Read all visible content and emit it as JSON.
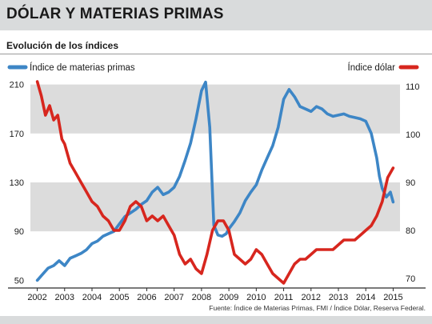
{
  "header": {
    "title": "DÓLAR Y MATERIAS PRIMAS",
    "subtitle": "Evolución de los índices"
  },
  "footer": {
    "source": "Fuente: Índice de Materias Primas, FMI / Índice Dólar, Reserva Federal."
  },
  "colors": {
    "commodity": "#3d86c6",
    "dollar": "#d7261e",
    "band": "#dcdcdc",
    "header_bg": "#d9dbdc"
  },
  "chart_data": {
    "type": "line",
    "x_ticks": [
      "2002",
      "2003",
      "2004",
      "2005",
      "2006",
      "2007",
      "2008",
      "2009",
      "2010",
      "2011",
      "2012",
      "2013",
      "2014",
      "2015"
    ],
    "xlim": [
      2001.75,
      2015.25
    ],
    "left_axis": {
      "ylim": [
        45,
        215
      ],
      "ticks": [
        50,
        90,
        130,
        170,
        210
      ]
    },
    "right_axis": {
      "ylim": [
        68.33,
        111.67
      ],
      "ticks": [
        70,
        80,
        90,
        100,
        110
      ]
    },
    "grid_bands": [
      [
        90,
        130
      ],
      [
        170,
        210
      ]
    ],
    "legend": {
      "placement": "top"
    },
    "series": [
      {
        "name": "Índice de materias primas",
        "axis": "left",
        "color": "#3d86c6",
        "x": [
          2002.0,
          2002.2,
          2002.4,
          2002.6,
          2002.8,
          2003.0,
          2003.2,
          2003.4,
          2003.6,
          2003.8,
          2004.0,
          2004.2,
          2004.4,
          2004.6,
          2004.8,
          2005.0,
          2005.2,
          2005.4,
          2005.6,
          2005.8,
          2006.0,
          2006.2,
          2006.4,
          2006.6,
          2006.8,
          2007.0,
          2007.2,
          2007.4,
          2007.6,
          2007.8,
          2008.0,
          2008.15,
          2008.3,
          2008.45,
          2008.6,
          2008.75,
          2008.9,
          2009.0,
          2009.2,
          2009.4,
          2009.6,
          2009.8,
          2010.0,
          2010.2,
          2010.4,
          2010.6,
          2010.8,
          2011.0,
          2011.2,
          2011.4,
          2011.6,
          2011.8,
          2012.0,
          2012.2,
          2012.4,
          2012.6,
          2012.8,
          2013.0,
          2013.2,
          2013.4,
          2013.6,
          2013.8,
          2014.0,
          2014.2,
          2014.4,
          2014.5,
          2014.6,
          2014.75,
          2014.9,
          2015.0
        ],
        "y": [
          50,
          55,
          60,
          62,
          66,
          62,
          68,
          70,
          72,
          75,
          80,
          82,
          86,
          88,
          90,
          96,
          102,
          105,
          108,
          112,
          115,
          122,
          126,
          120,
          122,
          126,
          135,
          148,
          162,
          182,
          205,
          212,
          175,
          95,
          87,
          86,
          88,
          92,
          98,
          105,
          115,
          122,
          128,
          140,
          150,
          160,
          175,
          198,
          206,
          200,
          192,
          190,
          188,
          192,
          190,
          186,
          184,
          185,
          186,
          184,
          183,
          182,
          180,
          170,
          150,
          135,
          125,
          118,
          122,
          114
        ]
      },
      {
        "name": "Índice dólar",
        "axis": "right",
        "color": "#d7261e",
        "x": [
          2002.0,
          2002.15,
          2002.3,
          2002.45,
          2002.6,
          2002.75,
          2002.9,
          2003.0,
          2003.2,
          2003.4,
          2003.6,
          2003.8,
          2004.0,
          2004.2,
          2004.4,
          2004.6,
          2004.8,
          2005.0,
          2005.2,
          2005.4,
          2005.6,
          2005.8,
          2006.0,
          2006.2,
          2006.4,
          2006.6,
          2006.8,
          2007.0,
          2007.2,
          2007.4,
          2007.6,
          2007.8,
          2008.0,
          2008.2,
          2008.4,
          2008.6,
          2008.8,
          2009.0,
          2009.2,
          2009.4,
          2009.6,
          2009.8,
          2010.0,
          2010.2,
          2010.4,
          2010.6,
          2010.8,
          2011.0,
          2011.2,
          2011.4,
          2011.6,
          2011.8,
          2012.0,
          2012.2,
          2012.4,
          2012.6,
          2012.8,
          2013.0,
          2013.2,
          2013.4,
          2013.6,
          2013.8,
          2014.0,
          2014.2,
          2014.4,
          2014.6,
          2014.8,
          2015.0
        ],
        "y": [
          111,
          108,
          104,
          106,
          103,
          104,
          99,
          98,
          94,
          92,
          90,
          88,
          86,
          85,
          83,
          82,
          80,
          80,
          82,
          85,
          86,
          85,
          82,
          83,
          82,
          83,
          81,
          79,
          75,
          73,
          74,
          72,
          71,
          75,
          80,
          82,
          82,
          80,
          75,
          74,
          73,
          74,
          76,
          75,
          73,
          71,
          70,
          69,
          71,
          73,
          74,
          74,
          75,
          76,
          76,
          76,
          76,
          77,
          78,
          78,
          78,
          79,
          80,
          81,
          83,
          86,
          91,
          93
        ]
      }
    ]
  }
}
